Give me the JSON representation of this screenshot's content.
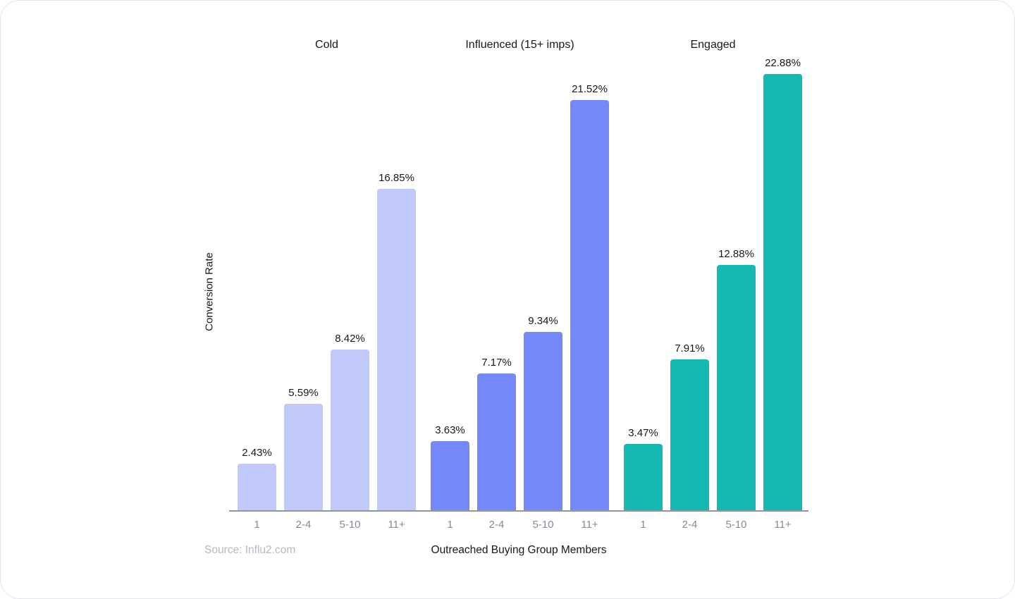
{
  "chart_data": {
    "type": "bar",
    "title": "",
    "categories": [
      "1",
      "2-4",
      "5-10",
      "11+"
    ],
    "series": [
      {
        "name": "Cold",
        "color": "#c1c9fb",
        "values": [
          2.43,
          5.59,
          8.42,
          16.85
        ]
      },
      {
        "name": "Influenced (15+ imps)",
        "color": "#7389fa",
        "values": [
          3.63,
          7.17,
          9.34,
          21.52
        ]
      },
      {
        "name": "Engaged",
        "color": "#16b9b1",
        "values": [
          3.47,
          7.91,
          12.88,
          22.88
        ]
      }
    ],
    "value_suffix": "%",
    "value_decimals": 2,
    "xlabel": "Outreached Buying Group Members",
    "ylabel": "Conversion Rate",
    "ylim": [
      0,
      23
    ],
    "grid": false,
    "legend_position": "group-headers-top"
  },
  "source_note": "Source: Influ2.com"
}
